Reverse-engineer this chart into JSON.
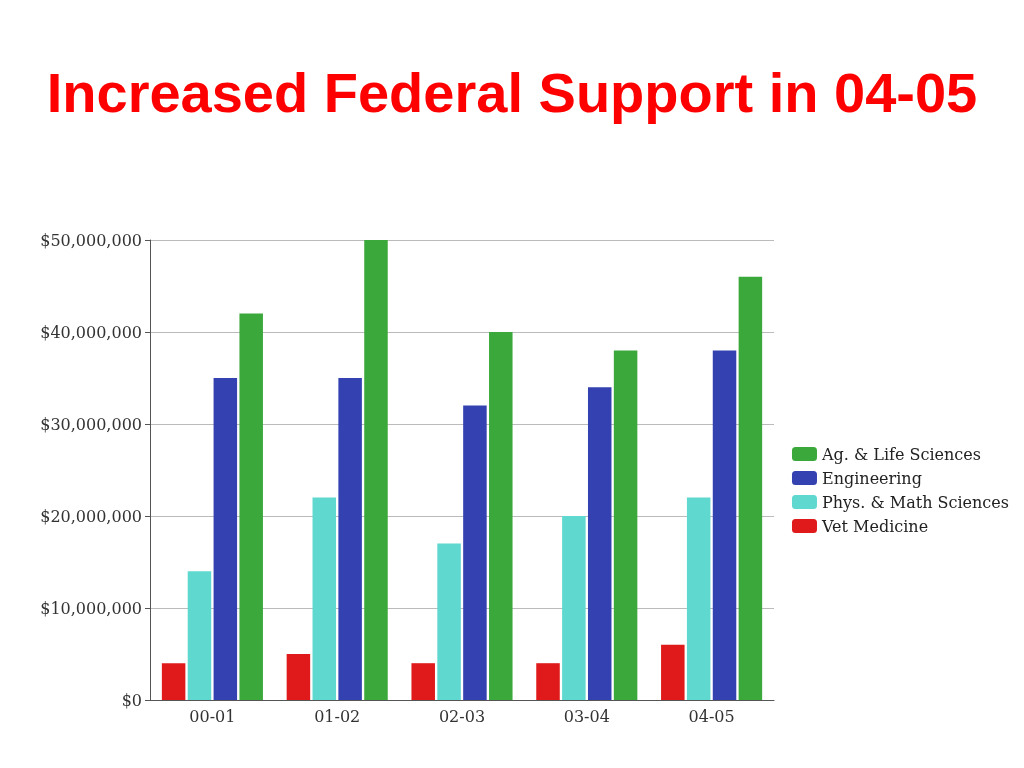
{
  "chart_data": {
    "type": "bar",
    "title": "Increased Federal Support in 04-05",
    "categories": [
      "00-01",
      "01-02",
      "02-03",
      "03-04",
      "04-05"
    ],
    "series": [
      {
        "name": "Vet Medicine",
        "color": "#e01a1a",
        "values": [
          4000000,
          5000000,
          4000000,
          4000000,
          6000000
        ]
      },
      {
        "name": "Phys. & Math Sciences",
        "color": "#5fd8cf",
        "values": [
          14000000,
          22000000,
          17000000,
          20000000,
          22000000
        ]
      },
      {
        "name": "Engineering",
        "color": "#3441b0",
        "values": [
          35000000,
          35000000,
          32000000,
          34000000,
          38000000
        ]
      },
      {
        "name": "Ag. & Life Sciences",
        "color": "#3aa83a",
        "values": [
          42000000,
          50000000,
          40000000,
          38000000,
          46000000
        ]
      }
    ],
    "ylim": [
      0,
      50000000
    ],
    "yticks": [
      {
        "value": 0,
        "label": "$0"
      },
      {
        "value": 10000000,
        "label": "$10,000,000"
      },
      {
        "value": 20000000,
        "label": "$20,000,000"
      },
      {
        "value": 30000000,
        "label": "$30,000,000"
      },
      {
        "value": 40000000,
        "label": "$40,000,000"
      },
      {
        "value": 50000000,
        "label": "$50,000,000"
      }
    ],
    "grid": "y",
    "legend": "right"
  }
}
